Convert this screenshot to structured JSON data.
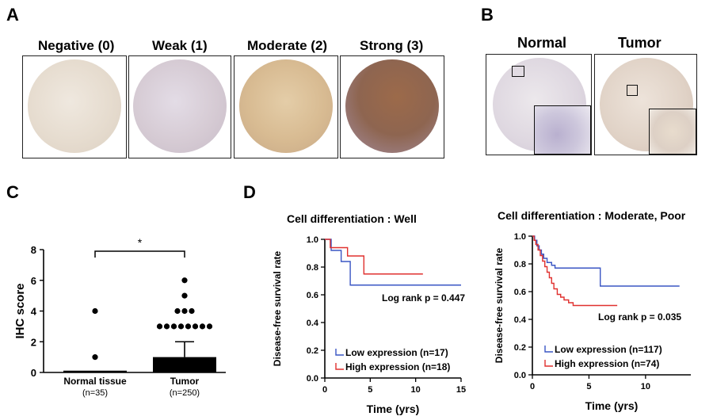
{
  "panels": {
    "a": "A",
    "b": "B",
    "c": "C",
    "d": "D"
  },
  "panel_a": {
    "titles": [
      "Negative (0)",
      "Weak (1)",
      "Moderate (2)",
      "Strong (3)"
    ]
  },
  "panel_b": {
    "titles": [
      "Normal",
      "Tumor"
    ]
  },
  "chart_data": [
    {
      "type": "scatter",
      "title": "",
      "ylabel": "IHC score",
      "ylim": [
        0,
        8
      ],
      "yticks": [
        0,
        2,
        4,
        6,
        8
      ],
      "categories": [
        "Normal tissue",
        "Tumor"
      ],
      "category_n": [
        "(n=35)",
        "(n=250)"
      ],
      "bar_means": [
        0,
        1
      ],
      "bar_error_upper": [
        0,
        2
      ],
      "points": [
        {
          "cat": 0,
          "y": 4
        },
        {
          "cat": 0,
          "y": 1
        },
        {
          "cat": 1,
          "y": 6
        },
        {
          "cat": 1,
          "y": 5
        },
        {
          "cat": 1,
          "y": 4
        },
        {
          "cat": 1,
          "y": 4
        },
        {
          "cat": 1,
          "y": 4
        },
        {
          "cat": 1,
          "y": 3
        },
        {
          "cat": 1,
          "y": 3
        },
        {
          "cat": 1,
          "y": 3
        },
        {
          "cat": 1,
          "y": 3
        },
        {
          "cat": 1,
          "y": 3
        },
        {
          "cat": 1,
          "y": 3
        },
        {
          "cat": 1,
          "y": 3
        },
        {
          "cat": 1,
          "y": 3
        }
      ],
      "significance": "*"
    },
    {
      "type": "line",
      "title": "Cell differentiation : Well",
      "xlabel": "Time (yrs)",
      "ylabel": "Disease-free survival rate",
      "xlim": [
        0,
        15
      ],
      "ylim": [
        0,
        1.0
      ],
      "xticks": [
        0,
        5,
        10,
        15
      ],
      "yticks": [
        0.0,
        0.2,
        0.4,
        0.6,
        0.8,
        1.0
      ],
      "annotation": "Log rank p = 0.447",
      "series": [
        {
          "name": "Low expression (n=17)",
          "color": "#3a56c4",
          "steps": [
            [
              0,
              1.0
            ],
            [
              0.7,
              0.92
            ],
            [
              1.8,
              0.84
            ],
            [
              2.8,
              0.67
            ],
            [
              15,
              0.67
            ]
          ]
        },
        {
          "name": "High expression (n=18)",
          "color": "#e0312f",
          "steps": [
            [
              0,
              1.0
            ],
            [
              0.6,
              0.94
            ],
            [
              2.5,
              0.88
            ],
            [
              4.3,
              0.75
            ],
            [
              10.8,
              0.75
            ]
          ]
        }
      ]
    },
    {
      "type": "line",
      "title": "Cell differentiation : Moderate, Poor",
      "xlabel": "Time (yrs)",
      "ylabel": "Disease-free survival rate",
      "xlim": [
        0,
        14
      ],
      "ylim": [
        0,
        1.0
      ],
      "xticks": [
        0,
        5,
        10
      ],
      "yticks": [
        0.0,
        0.2,
        0.4,
        0.6,
        0.8,
        1.0
      ],
      "annotation": "Log rank p = 0.035",
      "series": [
        {
          "name": "Low expression (n=117)",
          "color": "#3a56c4",
          "steps": [
            [
              0,
              1.0
            ],
            [
              0.2,
              0.97
            ],
            [
              0.4,
              0.93
            ],
            [
              0.6,
              0.9
            ],
            [
              0.8,
              0.87
            ],
            [
              1.0,
              0.84
            ],
            [
              1.3,
              0.81
            ],
            [
              1.7,
              0.79
            ],
            [
              2.0,
              0.77
            ],
            [
              6.0,
              0.64
            ],
            [
              13.0,
              0.64
            ]
          ]
        },
        {
          "name": "High expression (n=74)",
          "color": "#e0312f",
          "steps": [
            [
              0,
              1.0
            ],
            [
              0.15,
              0.97
            ],
            [
              0.3,
              0.94
            ],
            [
              0.5,
              0.9
            ],
            [
              0.7,
              0.86
            ],
            [
              0.9,
              0.82
            ],
            [
              1.1,
              0.78
            ],
            [
              1.3,
              0.74
            ],
            [
              1.5,
              0.7
            ],
            [
              1.7,
              0.66
            ],
            [
              1.9,
              0.62
            ],
            [
              2.2,
              0.58
            ],
            [
              2.5,
              0.56
            ],
            [
              2.8,
              0.54
            ],
            [
              3.2,
              0.52
            ],
            [
              3.6,
              0.5
            ],
            [
              7.5,
              0.5
            ]
          ]
        }
      ]
    }
  ]
}
